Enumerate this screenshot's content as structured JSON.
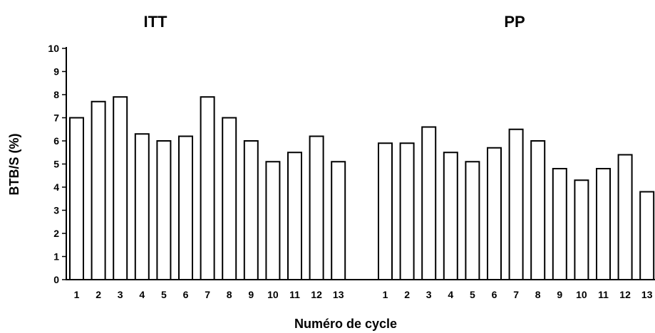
{
  "chart_data": {
    "type": "bar",
    "ylabel": "BTB/S (%)",
    "xlabel": "Numéro de cycle",
    "ylim": [
      0,
      10
    ],
    "yticks": [
      "0",
      "1",
      "2",
      "3",
      "4",
      "5",
      "6",
      "7",
      "8",
      "9",
      "10"
    ],
    "grid": false,
    "legend": "none",
    "bar_fill": "#ffffff",
    "bar_stroke": "#000000",
    "groups": [
      {
        "title": "ITT",
        "categories": [
          "1",
          "2",
          "3",
          "4",
          "5",
          "6",
          "7",
          "8",
          "9",
          "10",
          "11",
          "12",
          "13"
        ],
        "values": [
          7.0,
          7.7,
          7.9,
          6.3,
          6.0,
          6.2,
          7.9,
          7.0,
          6.0,
          5.1,
          5.5,
          6.2,
          5.1
        ]
      },
      {
        "title": "PP",
        "categories": [
          "1",
          "2",
          "3",
          "4",
          "5",
          "6",
          "7",
          "8",
          "9",
          "10",
          "11",
          "12",
          "13"
        ],
        "values": [
          5.9,
          5.9,
          6.6,
          5.5,
          5.1,
          5.7,
          6.5,
          6.0,
          4.8,
          4.3,
          4.8,
          5.4,
          3.8
        ]
      }
    ]
  }
}
